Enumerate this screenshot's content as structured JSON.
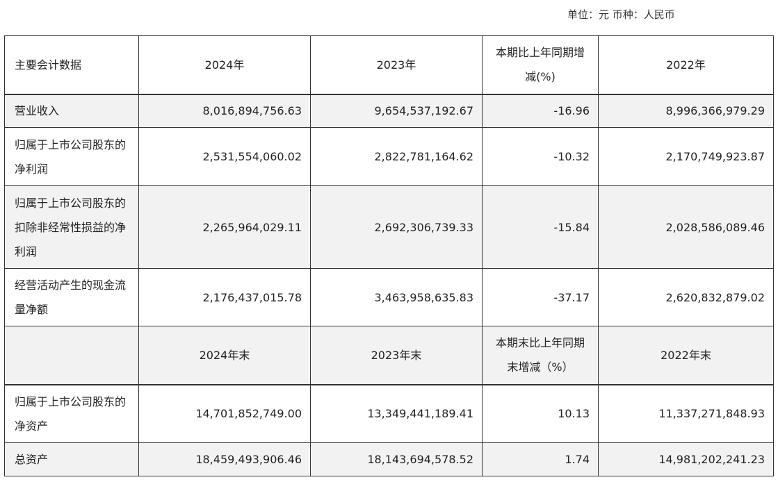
{
  "unit_note": "单位：元 币种：人民币",
  "header1": {
    "label": "主要会计数据",
    "c1": "2024年",
    "c2": "2023年",
    "c3": "本期比上年同期增减(%)",
    "c4": "2022年"
  },
  "rows1": [
    {
      "label": "营业收入",
      "v2024": "8,016,894,756.63",
      "v2023": "9,654,537,192.67",
      "change": "-16.96",
      "v2022": "8,996,366,979.29"
    },
    {
      "label": "归属于上市公司股东的净利润",
      "v2024": "2,531,554,060.02",
      "v2023": "2,822,781,164.62",
      "change": "-10.32",
      "v2022": "2,170,749,923.87"
    },
    {
      "label": "归属于上市公司股东的扣除非经常性损益的净利润",
      "v2024": "2,265,964,029.11",
      "v2023": "2,692,306,739.33",
      "change": "-15.84",
      "v2022": "2,028,586,089.46"
    },
    {
      "label": "经营活动产生的现金流量净额",
      "v2024": "2,176,437,015.78",
      "v2023": "3,463,958,635.83",
      "change": "-37.17",
      "v2022": "2,620,832,879.02"
    }
  ],
  "header2": {
    "label": "",
    "c1": "2024年末",
    "c2": "2023年末",
    "c3": "本期末比上年同期末增减（%）",
    "c4": "2022年末"
  },
  "rows2": [
    {
      "label": "归属于上市公司股东的净资产",
      "v2024": "14,701,852,749.00",
      "v2023": "13,349,441,189.41",
      "change": "10.13",
      "v2022": "11,337,271,848.93"
    },
    {
      "label": "总资产",
      "v2024": "18,459,493,906.46",
      "v2023": "18,143,694,578.52",
      "change": "1.74",
      "v2022": "14,981,202,241.23"
    }
  ]
}
